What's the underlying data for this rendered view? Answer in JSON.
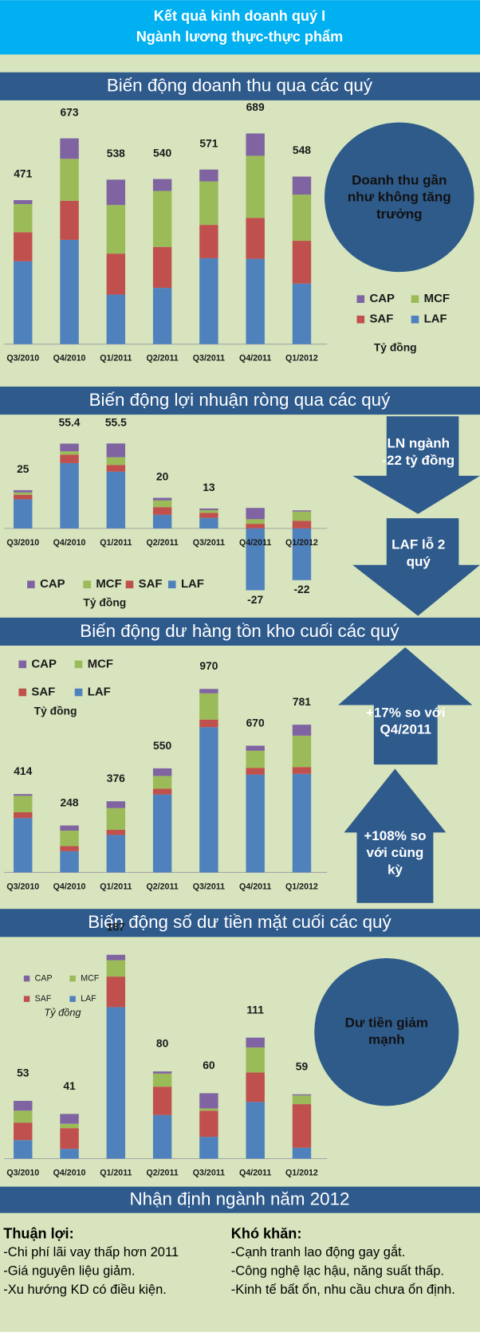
{
  "header": {
    "title": "Kết quả kinh doanh quý I",
    "subtitle": "Ngành lương thực-thực phẩm"
  },
  "chart_data": [
    {
      "type": "bar",
      "stacked": true,
      "title": "Biến động doanh thu qua các quý",
      "categories": [
        "Q3/2010",
        "Q4/2010",
        "Q1/2011",
        "Q2/2011",
        "Q3/2011",
        "Q4/2011",
        "Q1/2012"
      ],
      "series": [
        {
          "name": "LAF",
          "color": "#4f81bd",
          "values": [
            271,
            341,
            162,
            184,
            281,
            279,
            198
          ]
        },
        {
          "name": "SAF",
          "color": "#c0504d",
          "values": [
            95,
            128,
            134,
            134,
            109,
            134,
            140
          ]
        },
        {
          "name": "MCF",
          "color": "#9bbb59",
          "values": [
            92,
            137,
            159,
            183,
            142,
            203,
            151
          ]
        },
        {
          "name": "CAP",
          "color": "#8064a2",
          "values": [
            13,
            67,
            83,
            39,
            39,
            73,
            59
          ]
        }
      ],
      "totals": [
        471,
        673,
        538,
        540,
        571,
        689,
        548
      ],
      "unit": "Tỷ đồng",
      "annotations": [
        "Doanh thu gần như không tăng trưởng"
      ]
    },
    {
      "type": "bar",
      "stacked": true,
      "title": "Biến động lợi nhuận ròng qua các quý",
      "categories": [
        "Q3/2010",
        "Q4/2010",
        "Q1/2011",
        "Q2/2011",
        "Q3/2011",
        "Q4/2011",
        "Q1/2012"
      ],
      "series": [
        {
          "name": "LAF",
          "color": "#4f81bd",
          "values": [
            19,
            42.7,
            37.1,
            8.9,
            6.9,
            -40.4,
            -33.8
          ]
        },
        {
          "name": "SAF",
          "color": "#c0504d",
          "values": [
            3,
            5.5,
            4.4,
            5,
            3.3,
            3,
            5
          ]
        },
        {
          "name": "MCF",
          "color": "#9bbb59",
          "values": [
            1.5,
            2.2,
            5,
            4.4,
            1.7,
            3,
            6
          ]
        },
        {
          "name": "CAP",
          "color": "#8064a2",
          "values": [
            1.5,
            5,
            9,
            1.7,
            1.1,
            7.4,
            0.8
          ]
        }
      ],
      "totals": [
        25,
        55.4,
        55.5,
        20,
        13,
        -27,
        -22
      ],
      "unit": "Tỷ đồng",
      "annotations": [
        "LN ngành -22 tỷ đồng",
        "LAF lỗ 2 quý"
      ]
    },
    {
      "type": "bar",
      "stacked": true,
      "title": "Biến động dư hàng tồn kho cuối các quý",
      "categories": [
        "Q3/2010",
        "Q4/2010",
        "Q1/2011",
        "Q2/2011",
        "Q3/2011",
        "Q4/2011",
        "Q1/2012"
      ],
      "series": [
        {
          "name": "LAF",
          "color": "#4f81bd",
          "values": [
            287,
            112,
            198,
            412,
            768,
            517,
            521
          ]
        },
        {
          "name": "SAF",
          "color": "#c0504d",
          "values": [
            31,
            27,
            27,
            31,
            40,
            36,
            36
          ]
        },
        {
          "name": "MCF",
          "color": "#9bbb59",
          "values": [
            87,
            82,
            115,
            67,
            139,
            90,
            166
          ]
        },
        {
          "name": "CAP",
          "color": "#8064a2",
          "values": [
            9,
            27,
            36,
            40,
            23,
            27,
            58
          ]
        }
      ],
      "totals": [
        414,
        248,
        376,
        550,
        970,
        670,
        781
      ],
      "unit": "Tỷ đồng",
      "annotations": [
        "+17% so với Q4/2011",
        "+108% so với cùng kỳ"
      ]
    },
    {
      "type": "bar",
      "stacked": true,
      "title": "Biến động số dư tiền mặt cuối các quý",
      "categories": [
        "Q3/2010",
        "Q4/2010",
        "Q1/2011",
        "Q2/2011",
        "Q3/2011",
        "Q4/2011",
        "Q1/2012"
      ],
      "series": [
        {
          "name": "LAF",
          "color": "#4f81bd",
          "values": [
            17,
            9,
            139,
            40,
            20,
            52,
            10
          ]
        },
        {
          "name": "SAF",
          "color": "#c0504d",
          "values": [
            16,
            19,
            28,
            26,
            24,
            27,
            40
          ]
        },
        {
          "name": "MCF",
          "color": "#9bbb59",
          "values": [
            11,
            4,
            15,
            12,
            2,
            23,
            8
          ]
        },
        {
          "name": "CAP",
          "color": "#8064a2",
          "values": [
            9,
            9,
            5,
            2,
            14,
            9,
            1
          ]
        }
      ],
      "totals": [
        53,
        41,
        187,
        80,
        60,
        111,
        59
      ],
      "unit": "Tỷ đồng",
      "annotations": [
        "Dư tiền giảm mạnh"
      ]
    }
  ],
  "outlook": {
    "title": "Nhận định ngành năm 2012",
    "pros": {
      "title": "Thuận lợi:",
      "items": [
        "-Chi phí lãi vay thấp hơn 2011",
        "-Giá nguyên liệu giảm.",
        "-Xu hướng KD có điều kiện."
      ]
    },
    "cons": {
      "title": "Khó khăn:",
      "items": [
        "-Cạnh tranh lao động gay gắt.",
        "-Công nghệ lạc hậu, năng suất thấp.",
        "-Kinh tế bất ổn, nhu cầu chưa ổn định."
      ]
    }
  }
}
